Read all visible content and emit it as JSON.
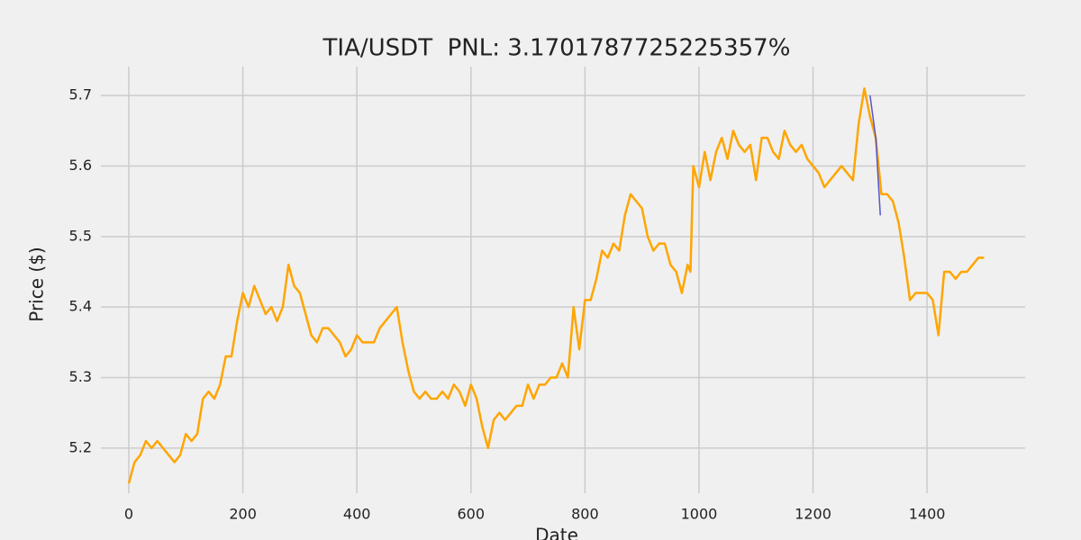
{
  "chart_data": {
    "type": "line",
    "title": "TIA/USDT  PNL: 3.1701787725225357%",
    "x_label": "Date",
    "y_label": "Price ($)",
    "xlim": [
      -49,
      1572
    ],
    "ylim": [
      5.136,
      5.741
    ],
    "xticks": [
      0,
      200,
      400,
      600,
      800,
      1000,
      1200,
      1400
    ],
    "yticks": [
      5.2,
      5.3,
      5.4,
      5.5,
      5.6,
      5.7
    ],
    "grid": true,
    "series": [
      {
        "color": "#ffa500",
        "x": [
          0,
          10,
          20,
          30,
          40,
          50,
          60,
          70,
          80,
          90,
          100,
          110,
          120,
          130,
          140,
          150,
          160,
          170,
          180,
          190,
          200,
          210,
          220,
          230,
          240,
          250,
          260,
          270,
          280,
          290,
          300,
          310,
          320,
          330,
          340,
          350,
          360,
          370,
          380,
          390,
          400,
          410,
          420,
          430,
          440,
          450,
          460,
          470,
          480,
          490,
          500,
          510,
          520,
          530,
          540,
          550,
          560,
          570,
          580,
          590,
          600,
          610,
          620,
          630,
          640,
          650,
          660,
          670,
          680,
          690,
          700,
          710,
          720,
          730,
          740,
          750,
          760,
          770,
          780,
          790,
          800,
          810,
          820,
          830,
          840,
          850,
          860,
          870,
          880,
          890,
          900,
          910,
          920,
          930,
          940,
          950,
          960,
          970,
          980,
          985,
          990,
          1000,
          1010,
          1020,
          1030,
          1040,
          1050,
          1060,
          1070,
          1080,
          1090,
          1100,
          1110,
          1120,
          1130,
          1140,
          1150,
          1160,
          1170,
          1180,
          1190,
          1200,
          1210,
          1220,
          1230,
          1240,
          1250,
          1260,
          1270,
          1280,
          1290,
          1300,
          1310,
          1320,
          1330,
          1340,
          1350,
          1360,
          1370,
          1380,
          1390,
          1400,
          1410,
          1420,
          1430,
          1440,
          1450,
          1460,
          1470,
          1480,
          1490,
          1500
        ],
        "values": [
          5.15,
          5.18,
          5.19,
          5.21,
          5.2,
          5.21,
          5.2,
          5.19,
          5.18,
          5.19,
          5.22,
          5.21,
          5.22,
          5.27,
          5.28,
          5.27,
          5.29,
          5.33,
          5.33,
          5.38,
          5.42,
          5.4,
          5.43,
          5.41,
          5.39,
          5.4,
          5.38,
          5.4,
          5.46,
          5.43,
          5.42,
          5.39,
          5.36,
          5.35,
          5.37,
          5.37,
          5.36,
          5.35,
          5.33,
          5.34,
          5.36,
          5.35,
          5.35,
          5.35,
          5.37,
          5.38,
          5.39,
          5.4,
          5.35,
          5.31,
          5.28,
          5.27,
          5.28,
          5.27,
          5.27,
          5.28,
          5.27,
          5.29,
          5.28,
          5.26,
          5.29,
          5.27,
          5.23,
          5.2,
          5.24,
          5.25,
          5.24,
          5.25,
          5.26,
          5.26,
          5.29,
          5.27,
          5.29,
          5.29,
          5.3,
          5.3,
          5.32,
          5.3,
          5.4,
          5.34,
          5.41,
          5.41,
          5.44,
          5.48,
          5.47,
          5.49,
          5.48,
          5.53,
          5.56,
          5.55,
          5.54,
          5.5,
          5.48,
          5.49,
          5.49,
          5.46,
          5.45,
          5.42,
          5.46,
          5.45,
          5.6,
          5.57,
          5.62,
          5.58,
          5.62,
          5.64,
          5.61,
          5.65,
          5.63,
          5.62,
          5.63,
          5.58,
          5.64,
          5.64,
          5.62,
          5.61,
          5.65,
          5.63,
          5.62,
          5.63,
          5.61,
          5.6,
          5.59,
          5.57,
          5.58,
          5.59,
          5.6,
          5.59,
          5.58,
          5.66,
          5.71,
          5.67,
          5.64,
          5.56,
          5.56,
          5.55,
          5.52,
          5.47,
          5.41,
          5.42,
          5.42,
          5.42,
          5.41,
          5.36,
          5.45,
          5.45,
          5.44,
          5.45,
          5.45,
          5.46,
          5.47,
          5.47
        ]
      },
      {
        "color": "#5555cc",
        "x": [
          1300,
          1310,
          1318
        ],
        "values": [
          5.7,
          5.64,
          5.53
        ]
      }
    ]
  }
}
